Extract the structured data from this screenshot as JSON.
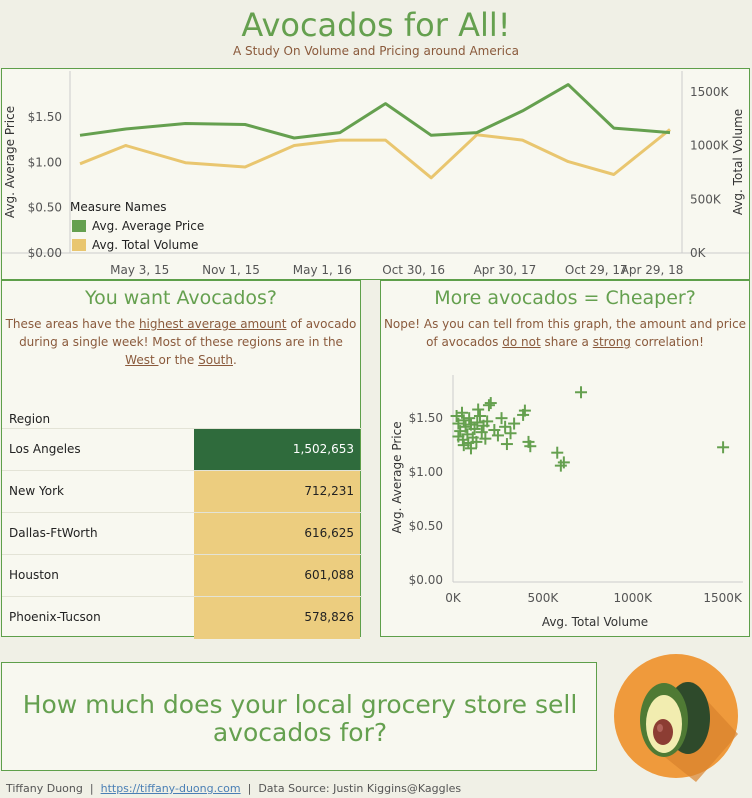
{
  "header": {
    "title": "Avocados for All!",
    "subtitle": "A Study On Volume and Pricing around America"
  },
  "line_panel": {
    "legend": {
      "title": "Measure Names",
      "items": [
        "Avg. Average Price",
        "Avg. Total Volume"
      ]
    }
  },
  "regions_panel": {
    "title": "You want Avocados?",
    "desc_line1_pre": "These areas have the ",
    "desc_line1_link": "highest average amount",
    "desc_line1_post": " of avocado",
    "desc_line2": "during a single week! Most of these regions are in the",
    "desc_line3_link1": "West ",
    "desc_line3_mid": "or the ",
    "desc_line3_link2": "South",
    "desc_line3_end": ".",
    "column_header": "Region",
    "rows": [
      {
        "region": "Los Angeles",
        "value": "1,502,653"
      },
      {
        "region": "New York",
        "value": "712,231"
      },
      {
        "region": "Dallas-FtWorth",
        "value": "616,625"
      },
      {
        "region": "Houston",
        "value": "601,088"
      },
      {
        "region": "Phoenix-Tucson",
        "value": "578,826"
      }
    ]
  },
  "scatter_panel": {
    "title": "More avocados = Cheaper?",
    "desc_line1": "Nope! As you can tell from this graph, the amount and price",
    "desc_line2_pre": "of avocados ",
    "desc_line2_link1": "do not",
    "desc_line2_mid": " share a ",
    "desc_line2_link2": "strong",
    "desc_line2_end": " correlation!"
  },
  "cta": {
    "line1": "How much does your local grocery store sell",
    "line2": "avocados for?"
  },
  "footer": {
    "author": "Tiffany Duong",
    "sep": "|",
    "link": "https://tiffany-duong.com",
    "source": "Data Source: Justin Kiggins@Kaggles"
  },
  "colors": {
    "green": "#65a04f",
    "gold": "#e9c66f",
    "brown": "#8a5a3c",
    "dark_green": "#2f6b3c"
  },
  "chart_data": [
    {
      "type": "line",
      "title": "",
      "x_tick_labels": [
        "May 3, 15",
        "Nov 1, 15",
        "May 1, 16",
        "Oct 30, 16",
        "Apr 30, 17",
        "Oct 29, 17",
        "Apr 29, 18"
      ],
      "x": [
        "2015-01-04",
        "2015-04-05",
        "2015-08-02",
        "2015-11-29",
        "2016-03-06",
        "2016-06-05",
        "2016-09-04",
        "2016-12-04",
        "2017-03-05",
        "2017-06-04",
        "2017-09-03",
        "2017-12-03",
        "2018-03-25"
      ],
      "y_left_label": "Avg. Average Price",
      "y_left_ticks": [
        "$0.00",
        "$0.50",
        "$1.00",
        "$1.50"
      ],
      "y_left_range": [
        0,
        1.9
      ],
      "y_right_label": "Avg. Total Volume",
      "y_right_ticks": [
        "0K",
        "500K",
        "1000K",
        "1500K"
      ],
      "y_right_range": [
        0,
        1600000
      ],
      "series": [
        {
          "name": "Avg. Average Price",
          "axis": "left",
          "color": "#65a04f",
          "values": [
            1.3,
            1.37,
            1.43,
            1.42,
            1.27,
            1.33,
            1.65,
            1.3,
            1.33,
            1.57,
            1.86,
            1.38,
            1.33
          ]
        },
        {
          "name": "Avg. Total Volume",
          "axis": "right",
          "color": "#e9c66f",
          "values": [
            830000,
            1000000,
            840000,
            800000,
            1000000,
            1050000,
            1050000,
            700000,
            1100000,
            1050000,
            850000,
            730000,
            1150000
          ]
        }
      ]
    },
    {
      "type": "scatter",
      "title": "",
      "xlabel": "Avg. Total Volume",
      "ylabel": "Avg. Average Price",
      "x_tick_labels": [
        "0K",
        "500K",
        "1000K",
        "1500K"
      ],
      "y_tick_labels": [
        "$0.00",
        "$0.50",
        "$1.00",
        "$1.50"
      ],
      "xlim": [
        0,
        1580000
      ],
      "ylim": [
        0,
        1.9
      ],
      "points": [
        [
          20000,
          1.52
        ],
        [
          30000,
          1.45
        ],
        [
          40000,
          1.38
        ],
        [
          50000,
          1.55
        ],
        [
          55000,
          1.3
        ],
        [
          60000,
          1.48
        ],
        [
          70000,
          1.42
        ],
        [
          80000,
          1.35
        ],
        [
          85000,
          1.27
        ],
        [
          90000,
          1.5
        ],
        [
          100000,
          1.44
        ],
        [
          110000,
          1.32
        ],
        [
          120000,
          1.4
        ],
        [
          130000,
          1.28
        ],
        [
          135000,
          1.46
        ],
        [
          140000,
          1.58
        ],
        [
          150000,
          1.52
        ],
        [
          160000,
          1.37
        ],
        [
          170000,
          1.43
        ],
        [
          180000,
          1.31
        ],
        [
          190000,
          1.47
        ],
        [
          200000,
          1.62
        ],
        [
          210000,
          1.64
        ],
        [
          230000,
          1.39
        ],
        [
          250000,
          1.34
        ],
        [
          270000,
          1.5
        ],
        [
          290000,
          1.42
        ],
        [
          300000,
          1.26
        ],
        [
          320000,
          1.36
        ],
        [
          340000,
          1.45
        ],
        [
          390000,
          1.53
        ],
        [
          400000,
          1.57
        ],
        [
          420000,
          1.28
        ],
        [
          430000,
          1.24
        ],
        [
          580000,
          1.18
        ],
        [
          600000,
          1.06
        ],
        [
          616625,
          1.09
        ],
        [
          712231,
          1.74
        ],
        [
          1502653,
          1.23
        ],
        [
          100000,
          1.22
        ],
        [
          60000,
          1.25
        ],
        [
          30000,
          1.33
        ]
      ]
    }
  ]
}
